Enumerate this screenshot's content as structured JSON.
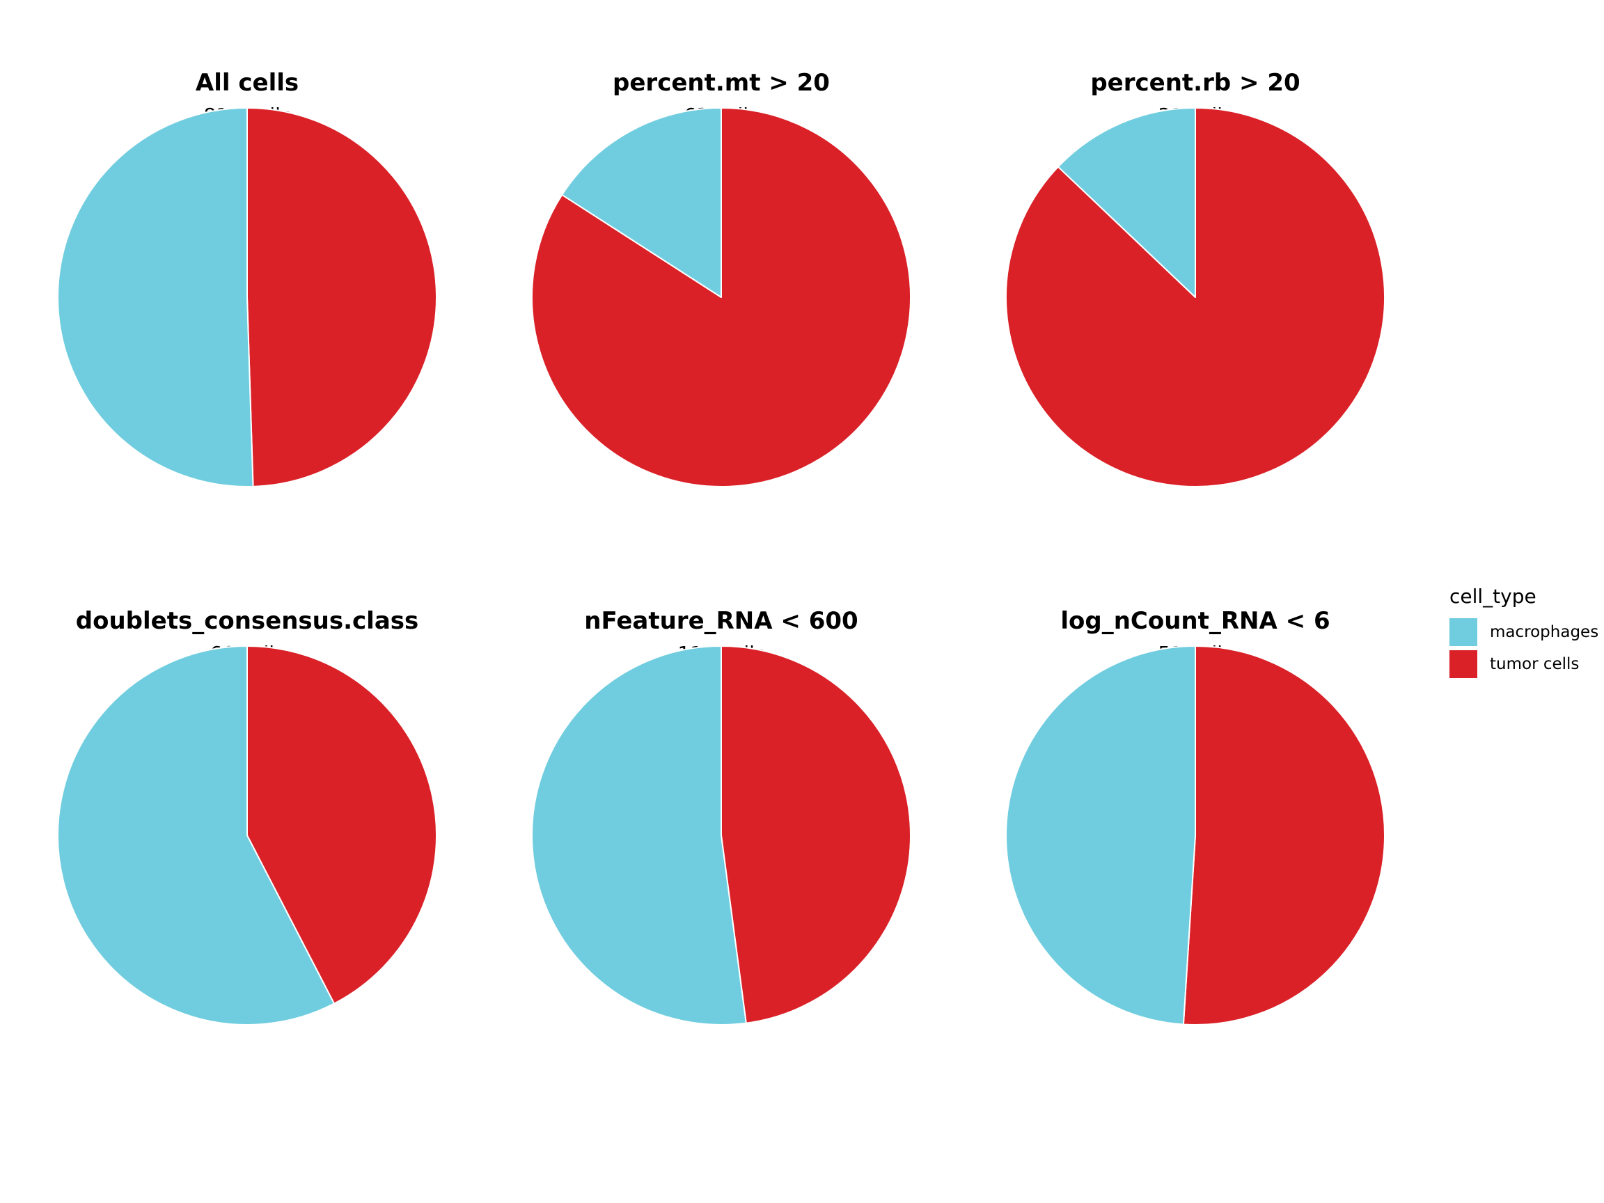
{
  "chart_data": [
    {
      "type": "pie",
      "title": "All cells",
      "subtitle": "817 cells",
      "categories": [
        "macrophages",
        "tumor cells"
      ],
      "values": [
        0.505,
        0.495
      ]
    },
    {
      "type": "pie",
      "title": "percent.mt > 20",
      "subtitle": "63 cells",
      "categories": [
        "macrophages",
        "tumor cells"
      ],
      "values": [
        0.159,
        0.841
      ]
    },
    {
      "type": "pie",
      "title": "percent.rb > 20",
      "subtitle": "31 cells",
      "categories": [
        "macrophages",
        "tumor cells"
      ],
      "values": [
        0.129,
        0.871
      ]
    },
    {
      "type": "pie",
      "title": "doublets_consensus.class",
      "subtitle": "66 cells",
      "categories": [
        "macrophages",
        "tumor cells"
      ],
      "values": [
        0.576,
        0.424
      ]
    },
    {
      "type": "pie",
      "title": "nFeature_RNA < 600",
      "subtitle": "117 cells",
      "categories": [
        "macrophages",
        "tumor cells"
      ],
      "values": [
        0.521,
        0.479
      ]
    },
    {
      "type": "pie",
      "title": "log_nCount_RNA < 6",
      "subtitle": "51 cells",
      "categories": [
        "macrophages",
        "tumor cells"
      ],
      "values": [
        0.49,
        0.51
      ]
    }
  ],
  "legend": {
    "title": "cell_type",
    "items": [
      {
        "label": "macrophages",
        "color": "#70CDDF"
      },
      {
        "label": "tumor cells",
        "color": "#DA2128"
      }
    ]
  },
  "colors": {
    "macrophages": "#70CDDF",
    "tumor cells": "#DA2128",
    "slice_border": "#ffffff"
  }
}
